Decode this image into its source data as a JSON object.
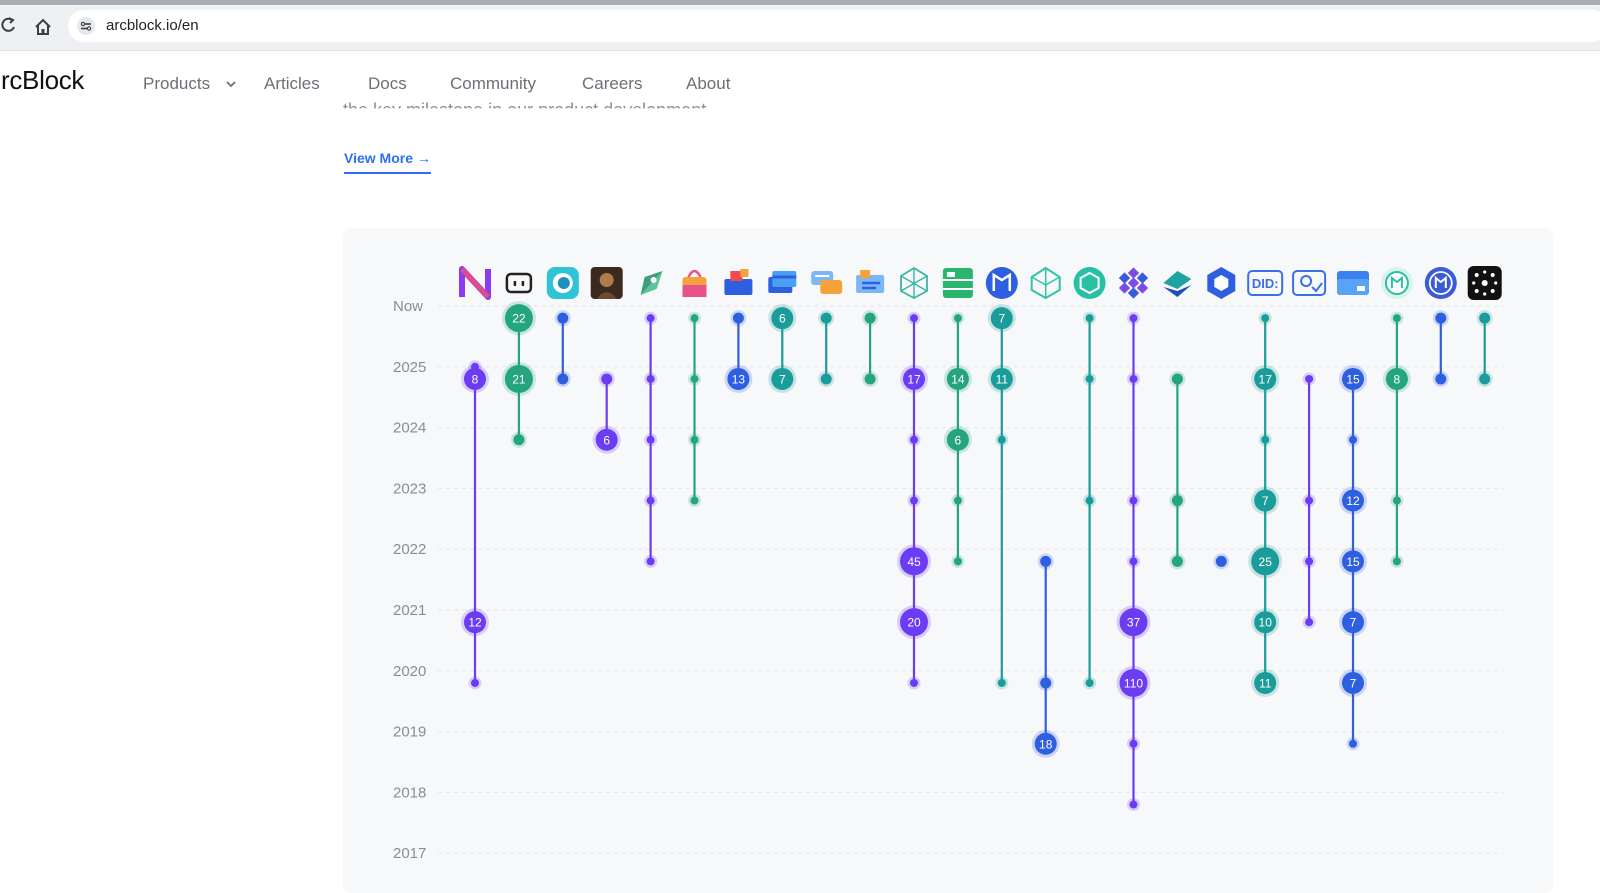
{
  "browser": {
    "url": "arcblock.io/en",
    "icons": [
      "reload-icon",
      "home-icon",
      "site-info-icon"
    ]
  },
  "nav": {
    "brand": "rcBlock",
    "items": [
      {
        "label": "Products",
        "has_dropdown": true
      },
      {
        "label": "Articles"
      },
      {
        "label": "Docs"
      },
      {
        "label": "Community"
      },
      {
        "label": "Careers"
      },
      {
        "label": "About"
      }
    ]
  },
  "hero": {
    "partial_text": "the key milestone in our product development.",
    "view_more": "View More",
    "view_more_arrow": "→"
  },
  "colors": {
    "purple": "#6b3cf2",
    "teal": "#1a9d9a",
    "green": "#25a57f",
    "blue": "#2e5fe0",
    "accent_link": "#2d6df6",
    "grid": "#e3e5ea"
  },
  "chart_data": {
    "type": "timeline",
    "y_ticks": [
      "Now",
      "2025",
      "2024",
      "2023",
      "2022",
      "2021",
      "2020",
      "2019",
      "2018",
      "2017"
    ],
    "products": [
      {
        "icon": "n-logo-icon",
        "color": "purple",
        "events": [
          {
            "y": 1
          },
          {
            "y": 1.2,
            "count": 8
          },
          {
            "y": 5.2,
            "count": 12
          },
          {
            "y": 6.2
          }
        ]
      },
      {
        "icon": "chat-box-icon",
        "color": "green",
        "events": [
          {
            "y": 0.2,
            "count": 22
          },
          {
            "y": 1.2,
            "count": 21
          },
          {
            "y": 2.2
          }
        ]
      },
      {
        "icon": "ring-icon",
        "color": "blue",
        "events": [
          {
            "y": 0.2
          },
          {
            "y": 1.2
          }
        ]
      },
      {
        "icon": "portrait-icon",
        "color": "purple",
        "events": [
          {
            "y": 1.2
          },
          {
            "y": 2.2,
            "count": 6
          }
        ]
      },
      {
        "icon": "rocket-icon",
        "color": "purple",
        "events": [
          {
            "y": 0.2
          },
          {
            "y": 1.2
          },
          {
            "y": 2.2
          },
          {
            "y": 3.2
          },
          {
            "y": 4.2
          }
        ]
      },
      {
        "icon": "shopping-bag-icon",
        "color": "green",
        "events": [
          {
            "y": 0.2
          },
          {
            "y": 1.2
          },
          {
            "y": 2.2
          },
          {
            "y": 3.2
          }
        ]
      },
      {
        "icon": "toolbox-icon",
        "color": "blue",
        "events": [
          {
            "y": 0.2
          },
          {
            "y": 1.2,
            "count": 13
          }
        ]
      },
      {
        "icon": "cards-icon",
        "color": "teal",
        "events": [
          {
            "y": 0.2,
            "count": 6
          },
          {
            "y": 1.2,
            "count": 7
          }
        ]
      },
      {
        "icon": "messages-icon",
        "color": "teal",
        "events": [
          {
            "y": 0.2
          },
          {
            "y": 1.2
          }
        ]
      },
      {
        "icon": "document-icon",
        "color": "green",
        "events": [
          {
            "y": 0.2
          },
          {
            "y": 1.2
          }
        ]
      },
      {
        "icon": "cube-network-icon",
        "color": "purple",
        "events": [
          {
            "y": 0.2
          },
          {
            "y": 1.2,
            "count": 17
          },
          {
            "y": 2.2
          },
          {
            "y": 3.2
          },
          {
            "y": 4.2,
            "count": 45
          },
          {
            "y": 5.2,
            "count": 20
          },
          {
            "y": 6.2
          }
        ]
      },
      {
        "icon": "server-icon",
        "color": "green",
        "events": [
          {
            "y": 0.2
          },
          {
            "y": 1.2,
            "count": 14
          },
          {
            "y": 2.2,
            "count": 6
          },
          {
            "y": 3.2
          },
          {
            "y": 4.2
          }
        ]
      },
      {
        "icon": "book-badge-icon",
        "color": "teal",
        "events": [
          {
            "y": 0.2,
            "count": 7
          },
          {
            "y": 1.2,
            "count": 11
          },
          {
            "y": 2.2
          },
          {
            "y": 6.2
          }
        ]
      },
      {
        "icon": "crystal-icon",
        "color": "blue",
        "events": [
          {
            "y": 4.2
          },
          {
            "y": 6.2
          },
          {
            "y": 7.2,
            "count": 18
          }
        ]
      },
      {
        "icon": "hexagon-icon",
        "color": "teal",
        "events": [
          {
            "y": 0.2
          },
          {
            "y": 1.2
          },
          {
            "y": 3.2
          },
          {
            "y": 6.2
          }
        ]
      },
      {
        "icon": "snowflake-icon",
        "color": "purple",
        "events": [
          {
            "y": 0.2
          },
          {
            "y": 1.2
          },
          {
            "y": 3.2
          },
          {
            "y": 4.2
          },
          {
            "y": 5.2,
            "count": 37
          },
          {
            "y": 6.2,
            "count": 110
          },
          {
            "y": 7.2
          },
          {
            "y": 8.2
          }
        ]
      },
      {
        "icon": "layers-icon",
        "color": "green",
        "events": [
          {
            "y": 1.2
          },
          {
            "y": 3.2
          },
          {
            "y": 4.2
          }
        ]
      },
      {
        "icon": "shield-hex-icon",
        "color": "blue",
        "events": [
          {
            "y": 4.2
          }
        ]
      },
      {
        "icon": "did-badge-icon",
        "color": "teal",
        "events": [
          {
            "y": 0.2
          },
          {
            "y": 1.2,
            "count": 17
          },
          {
            "y": 2.2
          },
          {
            "y": 3.2,
            "count": 7
          },
          {
            "y": 4.2,
            "count": 25
          },
          {
            "y": 5.2,
            "count": 10
          },
          {
            "y": 6.2,
            "count": 11
          }
        ]
      },
      {
        "icon": "id-verify-icon",
        "color": "purple",
        "events": [
          {
            "y": 1.2
          },
          {
            "y": 3.2
          },
          {
            "y": 4.2
          },
          {
            "y": 5.2
          }
        ]
      },
      {
        "icon": "id-card-icon",
        "color": "blue",
        "events": [
          {
            "y": 1.2,
            "count": 15
          },
          {
            "y": 2.2
          },
          {
            "y": 3.2,
            "count": 12
          },
          {
            "y": 4.2,
            "count": 15
          },
          {
            "y": 5.2,
            "count": 7
          },
          {
            "y": 6.2,
            "count": 7
          },
          {
            "y": 7.2
          }
        ]
      },
      {
        "icon": "wallet-round-icon",
        "color": "green",
        "events": [
          {
            "y": 0.2
          },
          {
            "y": 1.2,
            "count": 8
          },
          {
            "y": 3.2
          },
          {
            "y": 4.2
          }
        ]
      },
      {
        "icon": "globe-book-icon",
        "color": "blue",
        "events": [
          {
            "y": 0.2
          },
          {
            "y": 1.2
          }
        ]
      },
      {
        "icon": "dots-constellation-icon",
        "color": "teal",
        "events": [
          {
            "y": 0.2
          },
          {
            "y": 1.2
          }
        ]
      }
    ]
  }
}
